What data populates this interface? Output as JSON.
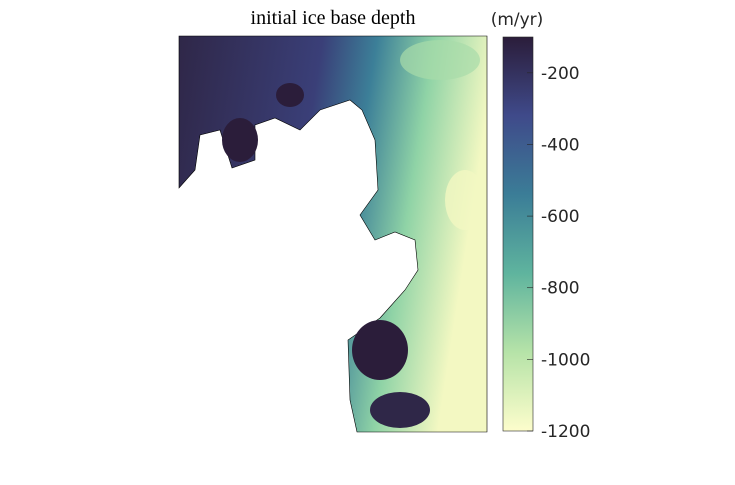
{
  "map": {
    "title": "initial ice base depth",
    "colorbar": {
      "label": "(m/yr)",
      "lim": [
        -1200,
        -100
      ],
      "ticks": [
        -200,
        -400,
        -600,
        -800,
        -1000,
        -1200
      ],
      "colors": [
        "#2b1d3a",
        "#3f4a8a",
        "#3b7d97",
        "#5fb49e",
        "#b6e3a8",
        "#fdfdcc"
      ]
    }
  }
}
